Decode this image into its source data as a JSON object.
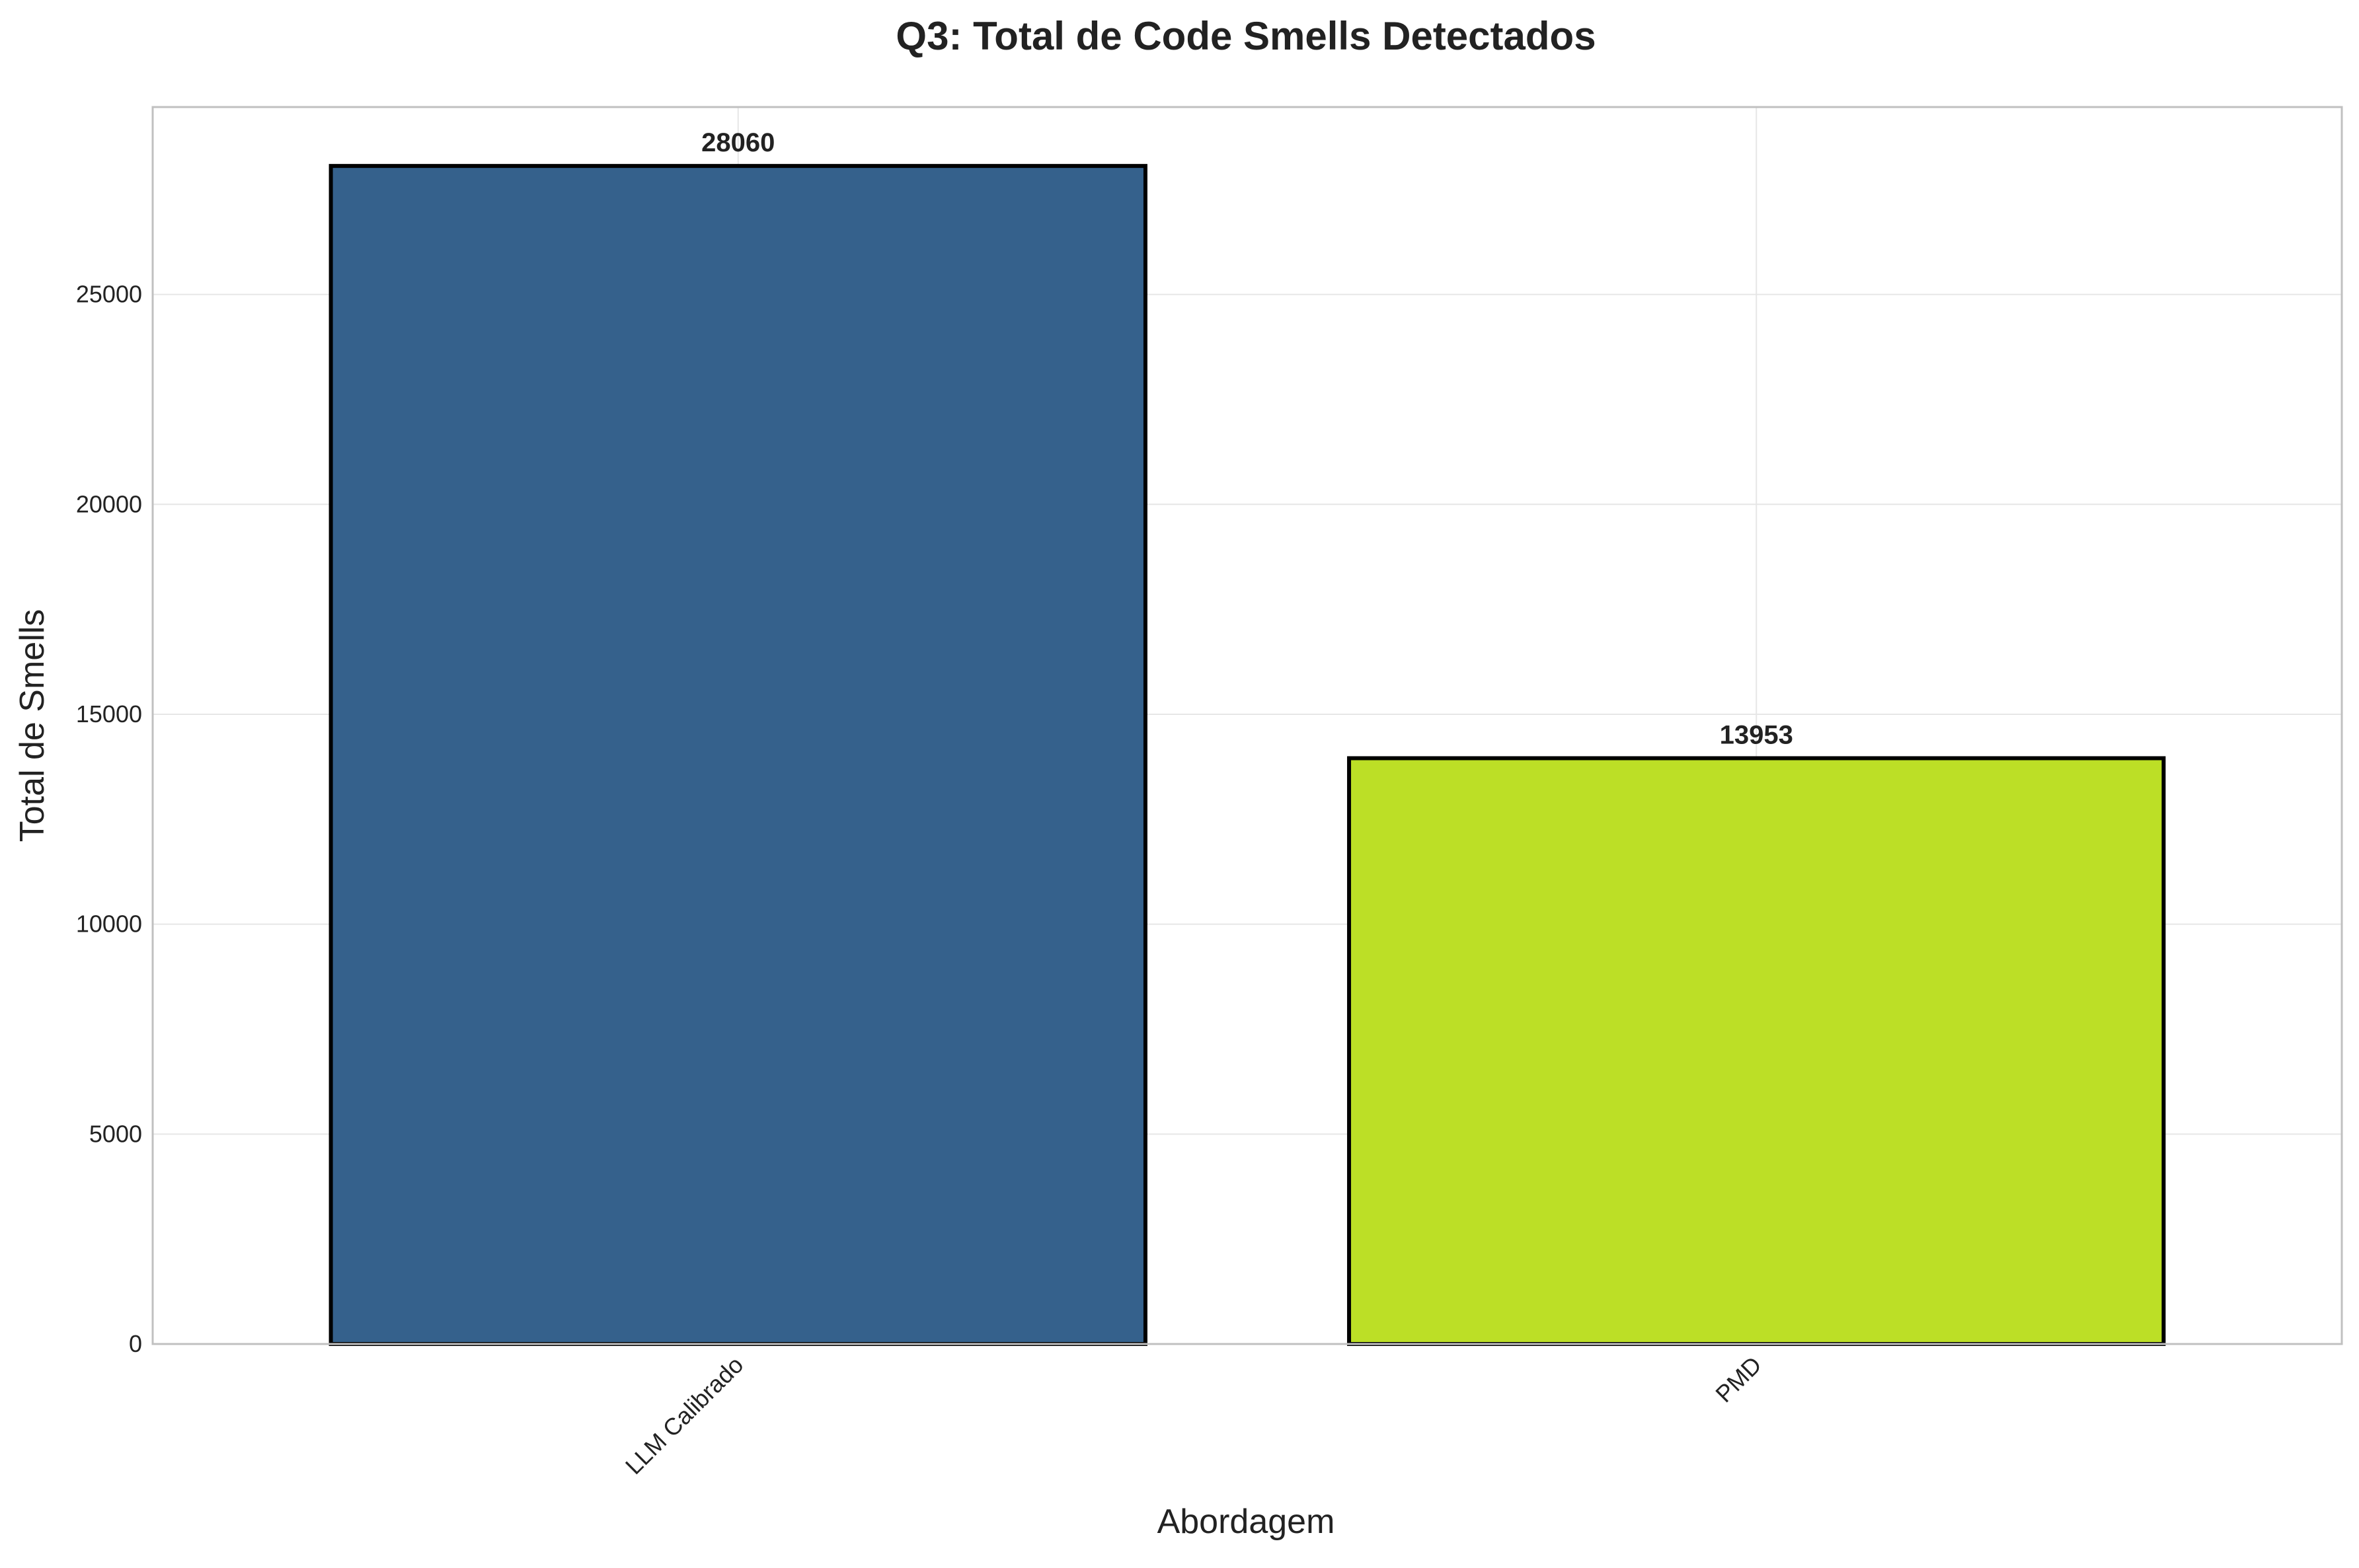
{
  "chart_data": {
    "type": "bar",
    "title": "Q3: Total de Code Smells Detectados",
    "xlabel": "Abordagem",
    "ylabel": "Total de Smells",
    "categories": [
      "LLM Calibrado",
      "PMD"
    ],
    "values": [
      28060,
      13953
    ],
    "value_labels": [
      "28060",
      "13953"
    ],
    "yticks": [
      0,
      5000,
      10000,
      15000,
      20000,
      25000
    ],
    "ytick_labels": [
      "0",
      "5000",
      "10000",
      "15000",
      "20000",
      "25000"
    ],
    "ylim": [
      0,
      29463
    ],
    "grid": true,
    "colors": {
      "bars": [
        "#35618c",
        "#bcdf26"
      ],
      "bar_edge": "#000000",
      "grid": "#e6e6e6",
      "frame": "#c0c0c0",
      "text": "#222222"
    }
  }
}
